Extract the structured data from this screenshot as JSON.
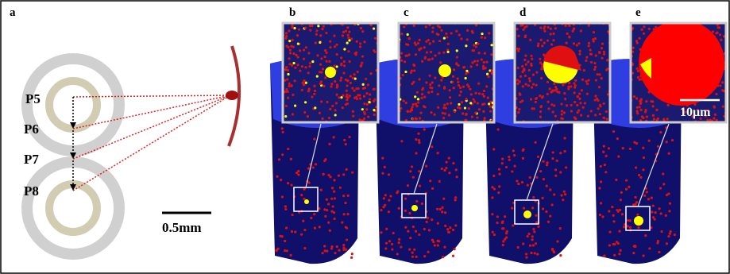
{
  "panel_labels": [
    "a",
    "b",
    "c",
    "d",
    "e"
  ],
  "points": [
    "P5",
    "P6",
    "P7",
    "P8"
  ],
  "scale_bar_left": "0.5mm",
  "scale_bar_inset": "10μm"
}
